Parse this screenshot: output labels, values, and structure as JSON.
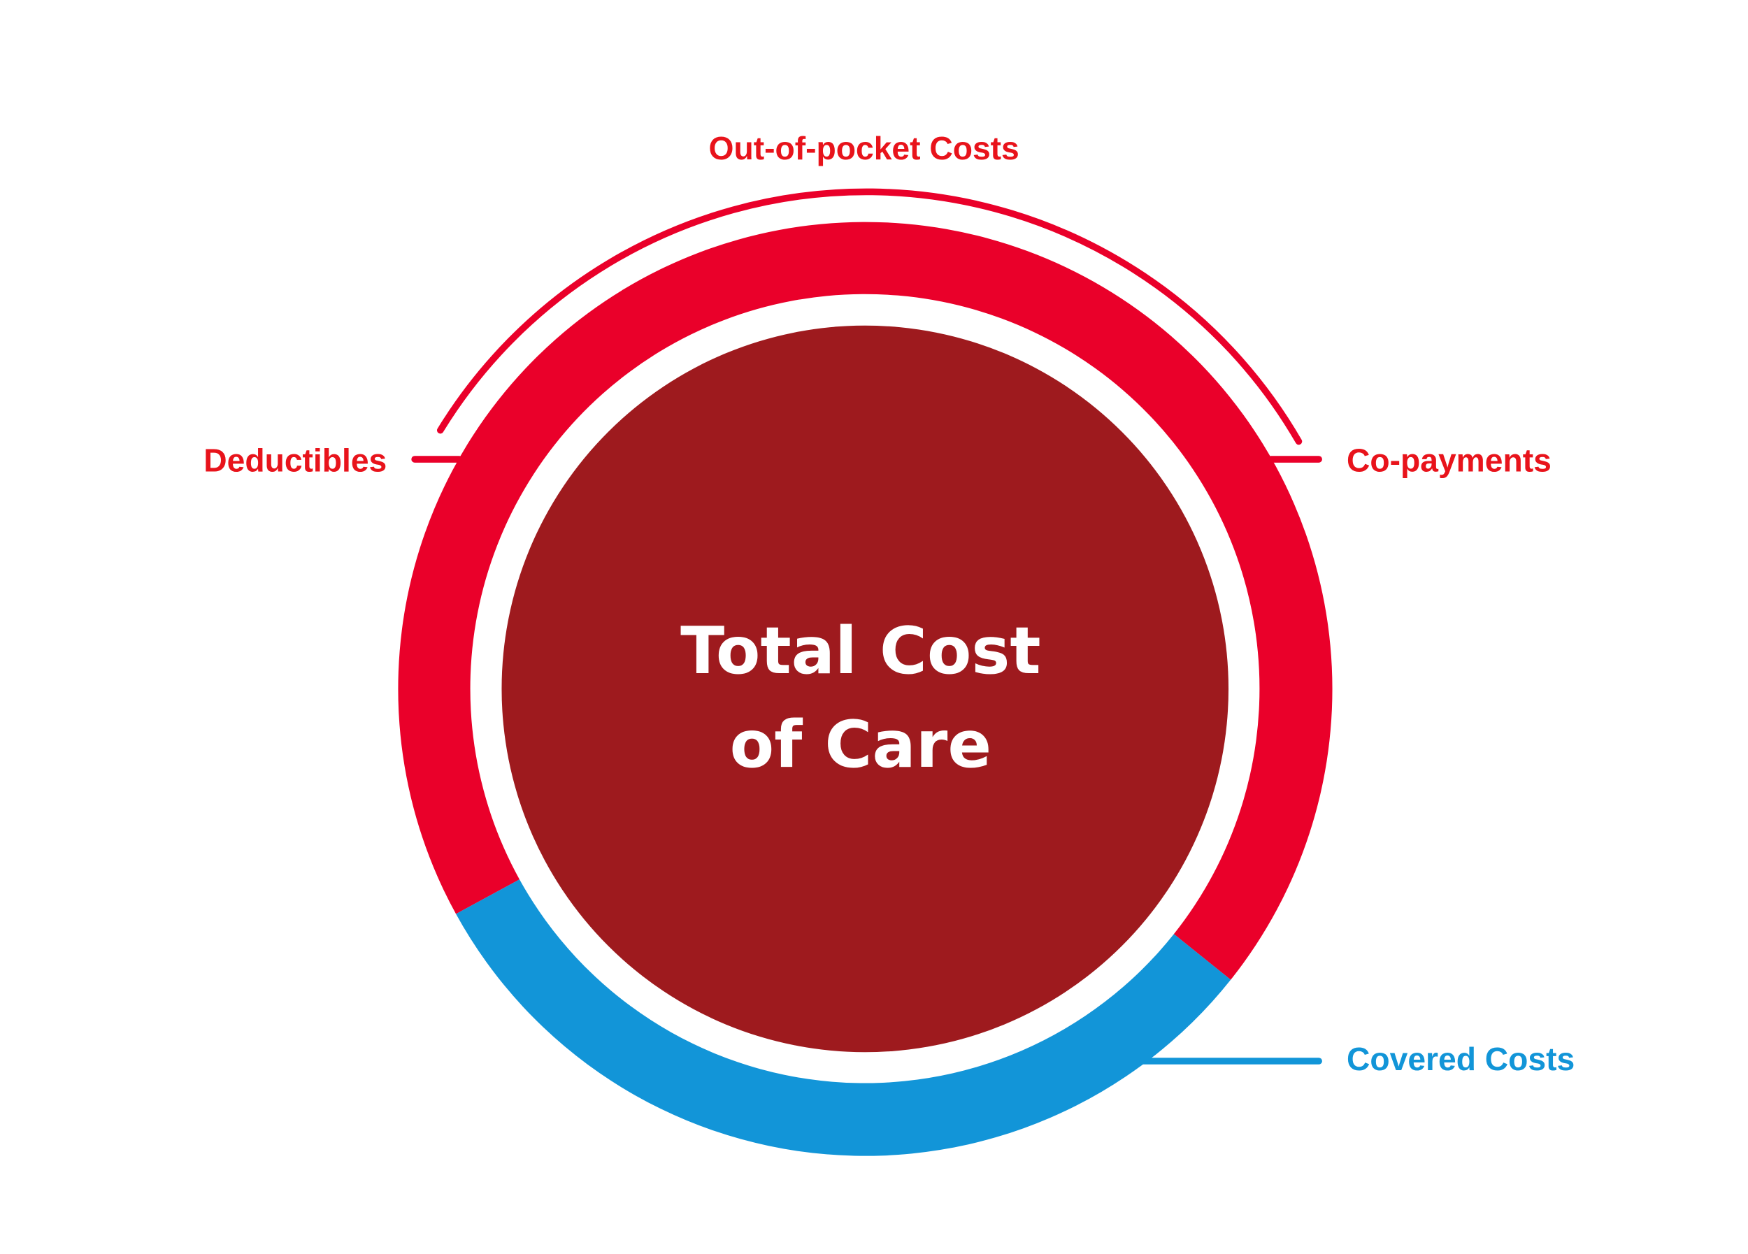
{
  "center": {
    "line1": "Total Cost",
    "line2": "of Care"
  },
  "labels": {
    "top": "Out-of-pocket Costs",
    "left": "Deductibles",
    "right": "Co-payments",
    "bottom": "Covered Costs"
  },
  "colors": {
    "out_of_pocket": "#EA002A",
    "covered": "#1295D8",
    "total": "#9E1A1E",
    "label_red": "#E8131B",
    "label_blue": "#1295D8"
  }
}
